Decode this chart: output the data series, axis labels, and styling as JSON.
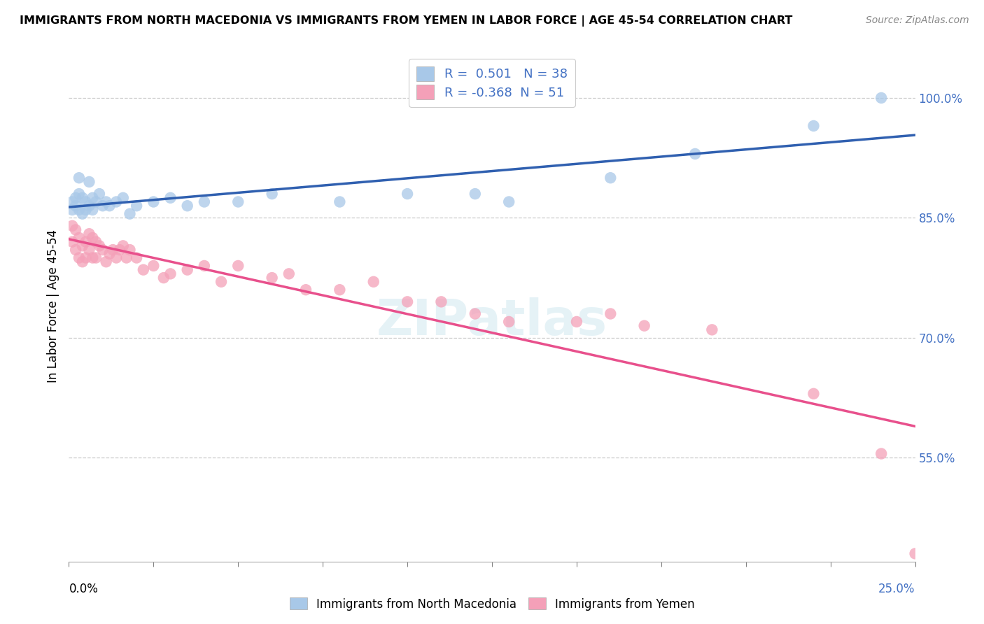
{
  "title": "IMMIGRANTS FROM NORTH MACEDONIA VS IMMIGRANTS FROM YEMEN IN LABOR FORCE | AGE 45-54 CORRELATION CHART",
  "source": "Source: ZipAtlas.com",
  "ylabel": "In Labor Force | Age 45-54",
  "xlim": [
    0.0,
    0.25
  ],
  "ylim": [
    0.42,
    1.06
  ],
  "R_blue": 0.501,
  "N_blue": 38,
  "R_pink": -0.368,
  "N_pink": 51,
  "color_blue": "#a8c8e8",
  "color_pink": "#f4a0b8",
  "line_blue": "#3060b0",
  "line_pink": "#e8508c",
  "legend_label_blue": "Immigrants from North Macedonia",
  "legend_label_pink": "Immigrants from Yemen",
  "y_ticks": [
    0.55,
    0.7,
    0.85,
    1.0
  ],
  "y_tick_labels": [
    "55.0%",
    "70.0%",
    "85.0%",
    "100.0%"
  ],
  "blue_x": [
    0.001,
    0.001,
    0.002,
    0.002,
    0.003,
    0.003,
    0.003,
    0.004,
    0.004,
    0.005,
    0.005,
    0.006,
    0.006,
    0.007,
    0.007,
    0.008,
    0.009,
    0.01,
    0.011,
    0.012,
    0.014,
    0.016,
    0.018,
    0.02,
    0.025,
    0.03,
    0.035,
    0.04,
    0.05,
    0.06,
    0.08,
    0.1,
    0.12,
    0.13,
    0.16,
    0.185,
    0.22,
    0.24
  ],
  "blue_y": [
    0.87,
    0.86,
    0.875,
    0.865,
    0.9,
    0.88,
    0.86,
    0.875,
    0.855,
    0.87,
    0.86,
    0.895,
    0.865,
    0.875,
    0.86,
    0.87,
    0.88,
    0.865,
    0.87,
    0.865,
    0.87,
    0.875,
    0.855,
    0.865,
    0.87,
    0.875,
    0.865,
    0.87,
    0.87,
    0.88,
    0.87,
    0.88,
    0.88,
    0.87,
    0.9,
    0.93,
    0.965,
    1.0
  ],
  "pink_x": [
    0.001,
    0.001,
    0.002,
    0.002,
    0.003,
    0.003,
    0.004,
    0.004,
    0.005,
    0.005,
    0.006,
    0.006,
    0.007,
    0.007,
    0.008,
    0.008,
    0.009,
    0.01,
    0.011,
    0.012,
    0.013,
    0.014,
    0.015,
    0.016,
    0.017,
    0.018,
    0.02,
    0.022,
    0.025,
    0.028,
    0.03,
    0.035,
    0.04,
    0.045,
    0.05,
    0.06,
    0.065,
    0.07,
    0.08,
    0.09,
    0.1,
    0.11,
    0.12,
    0.13,
    0.15,
    0.16,
    0.17,
    0.19,
    0.22,
    0.24,
    0.25
  ],
  "pink_y": [
    0.84,
    0.82,
    0.835,
    0.81,
    0.825,
    0.8,
    0.815,
    0.795,
    0.82,
    0.8,
    0.83,
    0.81,
    0.825,
    0.8,
    0.82,
    0.8,
    0.815,
    0.81,
    0.795,
    0.805,
    0.81,
    0.8,
    0.81,
    0.815,
    0.8,
    0.81,
    0.8,
    0.785,
    0.79,
    0.775,
    0.78,
    0.785,
    0.79,
    0.77,
    0.79,
    0.775,
    0.78,
    0.76,
    0.76,
    0.77,
    0.745,
    0.745,
    0.73,
    0.72,
    0.72,
    0.73,
    0.715,
    0.71,
    0.63,
    0.555,
    0.43
  ]
}
